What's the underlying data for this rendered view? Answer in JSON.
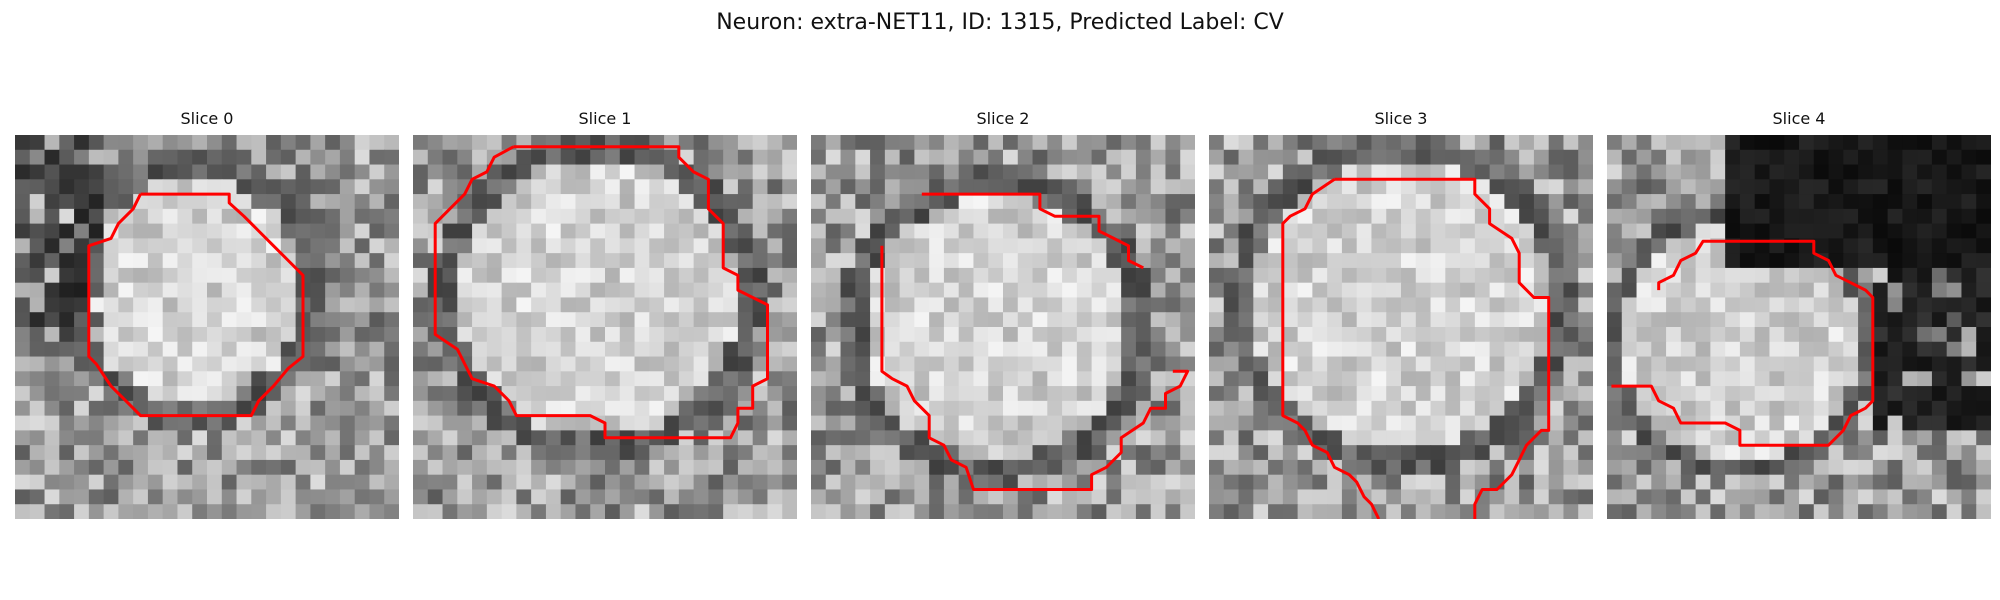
{
  "figure": {
    "title": "Neuron: extra-NET11, ID: 1315, Predicted Label: CV",
    "contour_color": "#ff0000"
  },
  "panels": [
    {
      "title": "Slice 0"
    },
    {
      "title": "Slice 1"
    },
    {
      "title": "Slice 2"
    },
    {
      "title": "Slice 3"
    },
    {
      "title": "Slice 4"
    }
  ]
}
